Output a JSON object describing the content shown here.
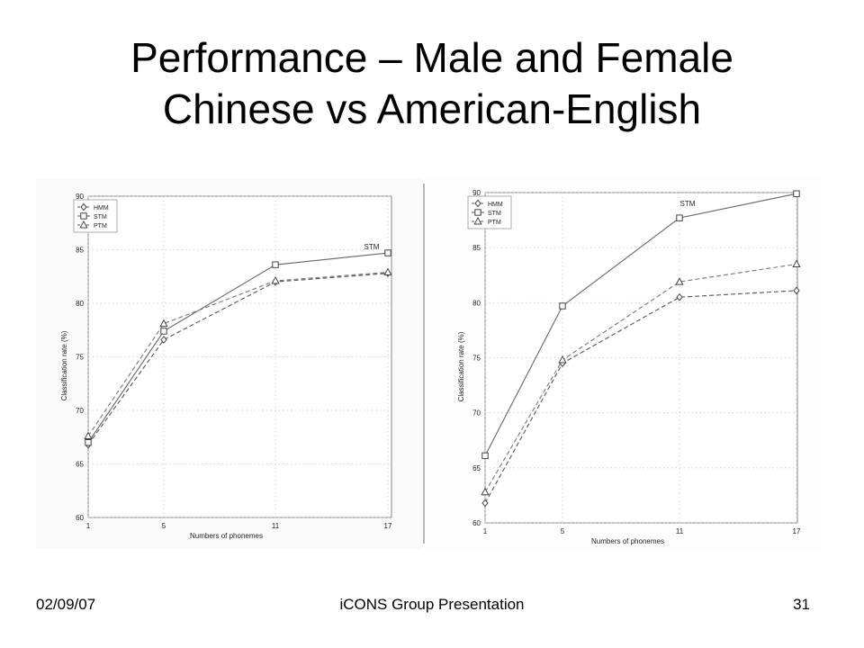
{
  "slide": {
    "title_line1": "Performance – Male and Female",
    "title_line2": "Chinese vs American-English"
  },
  "footer": {
    "date": "02/09/07",
    "presentation": "iCONS Group Presentation",
    "page": "31"
  },
  "chart_data": [
    {
      "type": "line",
      "x": [
        1,
        5,
        11,
        17
      ],
      "xticks": [
        "1",
        "5",
        "11",
        "17"
      ],
      "xlabel": "Numbers of phonemes",
      "ylabel": "Classification rate (%)",
      "ylim": [
        60,
        90
      ],
      "yticks": [
        60,
        65,
        70,
        75,
        80,
        85,
        90
      ],
      "grid": true,
      "legend_position": "top-left",
      "annotation": "STM",
      "series": [
        {
          "name": "HMM",
          "values": [
            66.8,
            76.6,
            82.0,
            82.8
          ],
          "marker": "diamond",
          "dash": "dashed"
        },
        {
          "name": "STM",
          "values": [
            67.0,
            77.4,
            83.6,
            84.7
          ],
          "marker": "square",
          "dash": "solid"
        },
        {
          "name": "PTM",
          "values": [
            67.6,
            78.1,
            82.1,
            82.9
          ],
          "marker": "triangle",
          "dash": "dashed"
        }
      ]
    },
    {
      "type": "line",
      "x": [
        1,
        5,
        11,
        17
      ],
      "xticks": [
        "1",
        "5",
        "11",
        "17"
      ],
      "xlabel": "Numbers of phonemes",
      "ylabel": "Classification rate (%)",
      "ylim": [
        60,
        90
      ],
      "yticks": [
        60,
        65,
        70,
        75,
        80,
        85,
        90
      ],
      "grid": true,
      "legend_position": "top-left",
      "annotation": "STM",
      "series": [
        {
          "name": "HMM",
          "values": [
            61.8,
            74.5,
            80.5,
            81.1
          ],
          "marker": "diamond",
          "dash": "dashed"
        },
        {
          "name": "STM",
          "values": [
            66.1,
            79.7,
            87.7,
            89.9
          ],
          "marker": "square",
          "dash": "solid"
        },
        {
          "name": "PTM",
          "values": [
            62.8,
            74.8,
            81.9,
            83.5
          ],
          "marker": "triangle",
          "dash": "dashed"
        }
      ]
    }
  ]
}
